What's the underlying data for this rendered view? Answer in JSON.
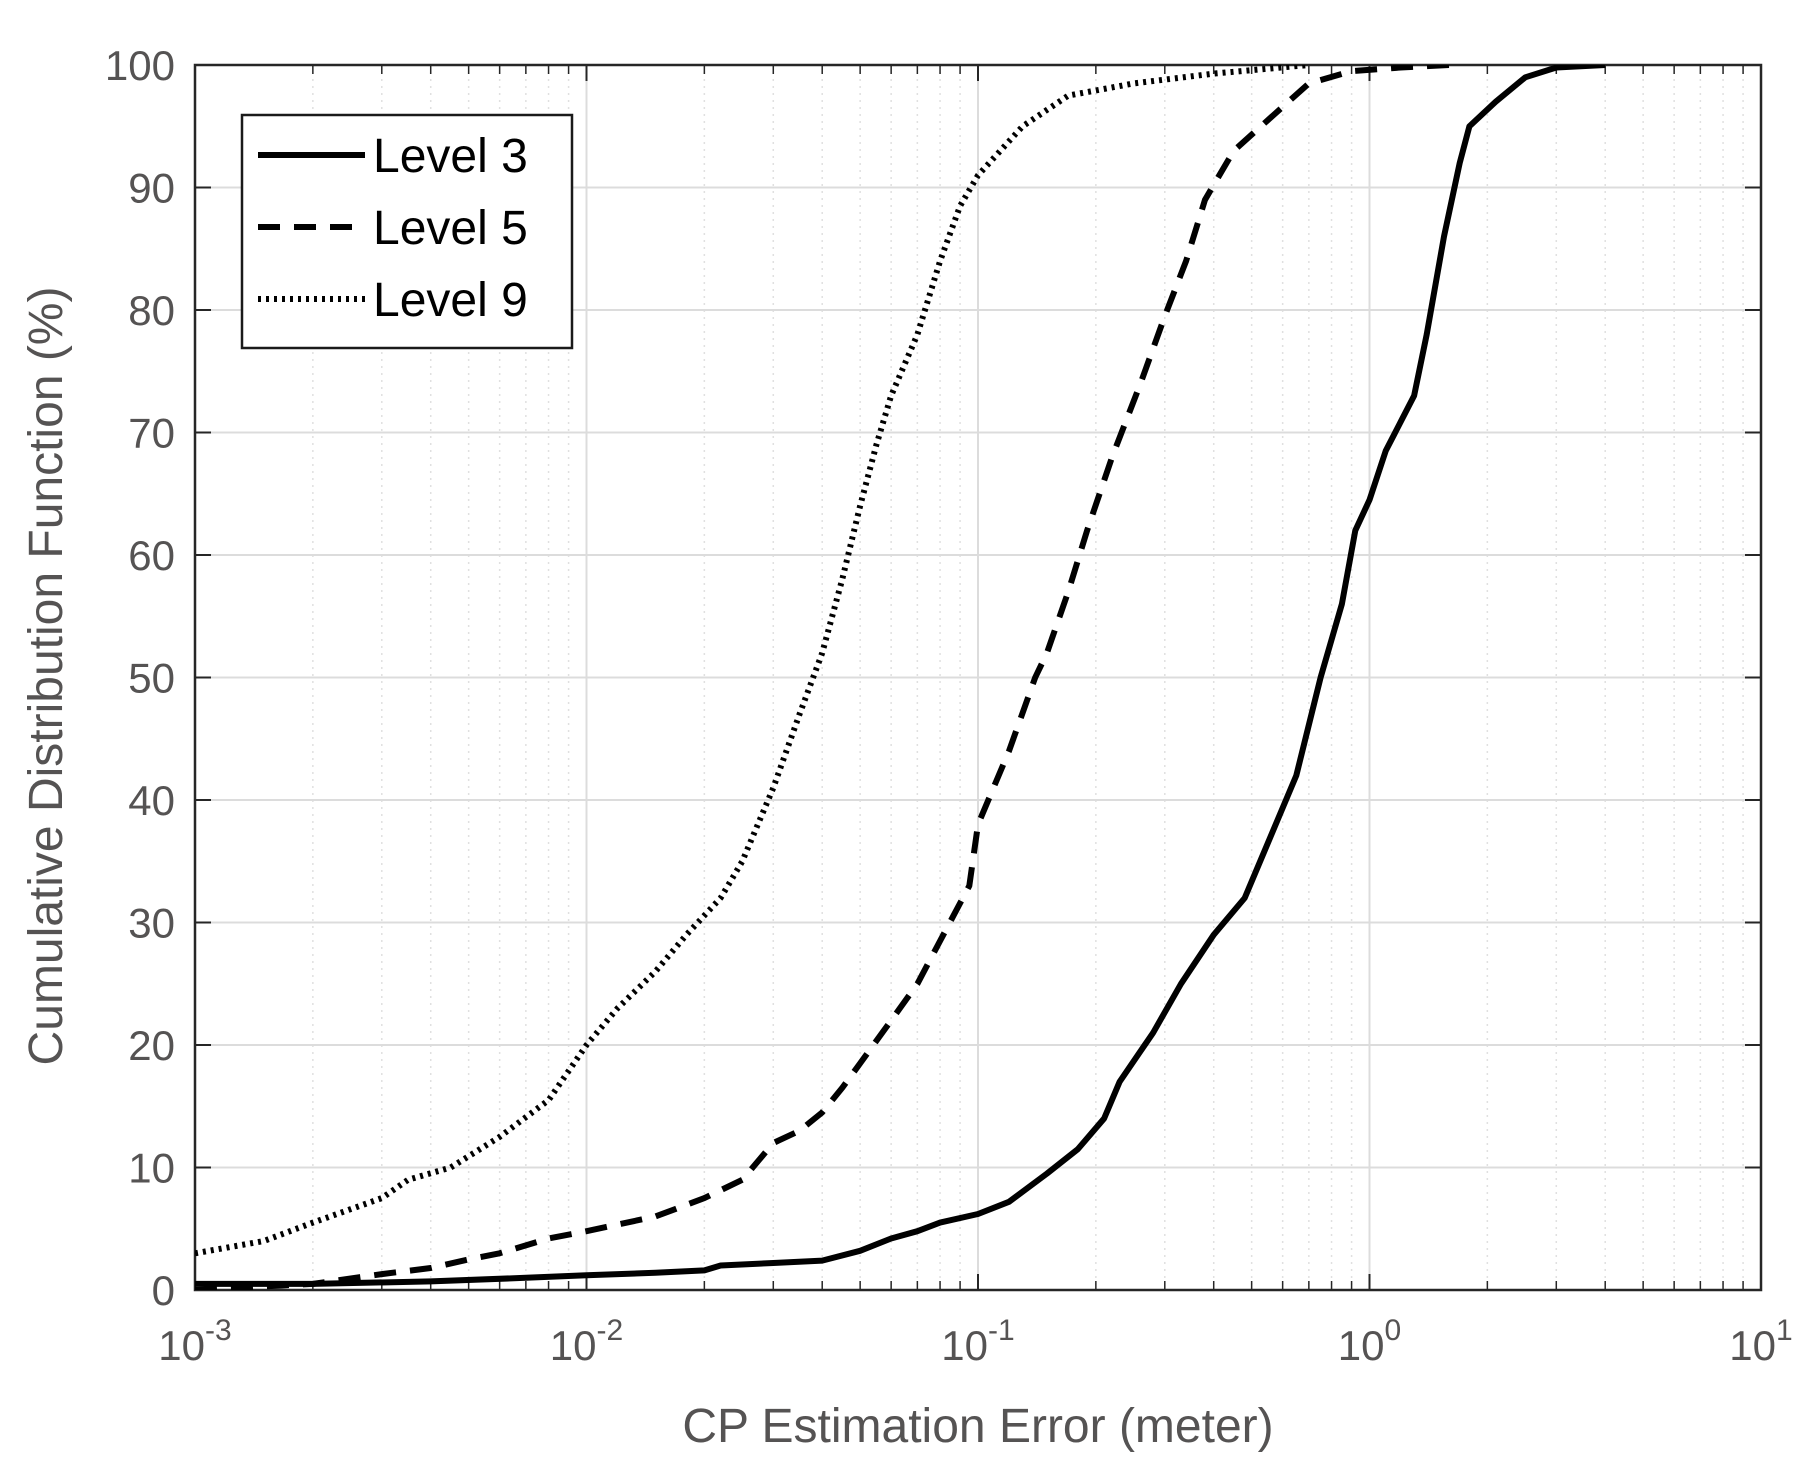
{
  "chart_data": {
    "type": "line",
    "title": "",
    "xlabel": "CP Estimation Error (meter)",
    "ylabel": "Cumulative Distribution Function (%)",
    "xscale": "log",
    "xlim": [
      0.001,
      10
    ],
    "ylim": [
      0,
      100
    ],
    "grid": true,
    "legend_position": "top-left",
    "x_tick_labels": [
      {
        "base": "10",
        "exp": "-3"
      },
      {
        "base": "10",
        "exp": "-2"
      },
      {
        "base": "10",
        "exp": "-1"
      },
      {
        "base": "10",
        "exp": "0"
      },
      {
        "base": "10",
        "exp": "1"
      }
    ],
    "x_ticks": [
      0.001,
      0.01,
      0.1,
      1,
      10
    ],
    "y_ticks": [
      "0",
      "10",
      "20",
      "30",
      "40",
      "50",
      "60",
      "70",
      "80",
      "90",
      "100"
    ],
    "series": [
      {
        "name": "Level 3",
        "style": "solid",
        "color": "#000000",
        "points": [
          [
            0.001,
            0.5
          ],
          [
            0.002,
            0.5
          ],
          [
            0.004,
            0.7
          ],
          [
            0.007,
            1.0
          ],
          [
            0.01,
            1.2
          ],
          [
            0.015,
            1.4
          ],
          [
            0.02,
            1.6
          ],
          [
            0.022,
            2.0
          ],
          [
            0.03,
            2.2
          ],
          [
            0.04,
            2.4
          ],
          [
            0.05,
            3.2
          ],
          [
            0.06,
            4.2
          ],
          [
            0.07,
            4.8
          ],
          [
            0.08,
            5.5
          ],
          [
            0.1,
            6.2
          ],
          [
            0.12,
            7.2
          ],
          [
            0.15,
            9.5
          ],
          [
            0.18,
            11.5
          ],
          [
            0.21,
            14.0
          ],
          [
            0.23,
            17.0
          ],
          [
            0.28,
            21.0
          ],
          [
            0.33,
            25.0
          ],
          [
            0.4,
            29.0
          ],
          [
            0.48,
            32.0
          ],
          [
            0.55,
            36.5
          ],
          [
            0.65,
            42.0
          ],
          [
            0.75,
            50.0
          ],
          [
            0.85,
            56.0
          ],
          [
            0.92,
            62.0
          ],
          [
            1.0,
            64.5
          ],
          [
            1.1,
            68.5
          ],
          [
            1.3,
            73.0
          ],
          [
            1.4,
            78.0
          ],
          [
            1.55,
            86.0
          ],
          [
            1.7,
            92.0
          ],
          [
            1.8,
            95.0
          ],
          [
            2.1,
            97.0
          ],
          [
            2.5,
            99.0
          ],
          [
            3.0,
            99.8
          ],
          [
            4.0,
            100
          ]
        ]
      },
      {
        "name": "Level 5",
        "style": "dashed",
        "color": "#000000",
        "points": [
          [
            0.001,
            0.0
          ],
          [
            0.002,
            0.5
          ],
          [
            0.003,
            1.3
          ],
          [
            0.004,
            1.8
          ],
          [
            0.005,
            2.5
          ],
          [
            0.006,
            3.0
          ],
          [
            0.008,
            4.2
          ],
          [
            0.01,
            4.8
          ],
          [
            0.015,
            6.0
          ],
          [
            0.02,
            7.5
          ],
          [
            0.025,
            9.0
          ],
          [
            0.03,
            12.0
          ],
          [
            0.035,
            13.0
          ],
          [
            0.04,
            14.5
          ],
          [
            0.045,
            16.5
          ],
          [
            0.05,
            18.5
          ],
          [
            0.06,
            22.0
          ],
          [
            0.07,
            25.0
          ],
          [
            0.08,
            28.5
          ],
          [
            0.095,
            33.0
          ],
          [
            0.1,
            38.0
          ],
          [
            0.12,
            44.0
          ],
          [
            0.14,
            50.0
          ],
          [
            0.15,
            52.0
          ],
          [
            0.17,
            57.0
          ],
          [
            0.19,
            62.0
          ],
          [
            0.22,
            68.0
          ],
          [
            0.26,
            74.0
          ],
          [
            0.3,
            79.5
          ],
          [
            0.34,
            84.0
          ],
          [
            0.38,
            89.0
          ],
          [
            0.45,
            93.0
          ],
          [
            0.55,
            95.5
          ],
          [
            0.7,
            98.5
          ],
          [
            0.9,
            99.5
          ],
          [
            1.2,
            99.8
          ],
          [
            1.6,
            100
          ]
        ]
      },
      {
        "name": "Level 9",
        "style": "dotted",
        "color": "#000000",
        "points": [
          [
            0.001,
            3.0
          ],
          [
            0.0015,
            4.0
          ],
          [
            0.002,
            5.5
          ],
          [
            0.003,
            7.5
          ],
          [
            0.0035,
            9.0
          ],
          [
            0.0045,
            10.0
          ],
          [
            0.006,
            12.5
          ],
          [
            0.008,
            15.5
          ],
          [
            0.01,
            20.0
          ],
          [
            0.012,
            23.0
          ],
          [
            0.015,
            26.0
          ],
          [
            0.018,
            29.0
          ],
          [
            0.022,
            32.0
          ],
          [
            0.025,
            35.0
          ],
          [
            0.03,
            41.0
          ],
          [
            0.035,
            47.0
          ],
          [
            0.04,
            52.0
          ],
          [
            0.045,
            58.0
          ],
          [
            0.05,
            64.0
          ],
          [
            0.055,
            69.0
          ],
          [
            0.06,
            73.0
          ],
          [
            0.07,
            78.0
          ],
          [
            0.08,
            84.0
          ],
          [
            0.09,
            88.5
          ],
          [
            0.1,
            91.0
          ],
          [
            0.13,
            95.0
          ],
          [
            0.17,
            97.5
          ],
          [
            0.25,
            98.5
          ],
          [
            0.4,
            99.3
          ],
          [
            0.7,
            100
          ]
        ]
      }
    ]
  }
}
